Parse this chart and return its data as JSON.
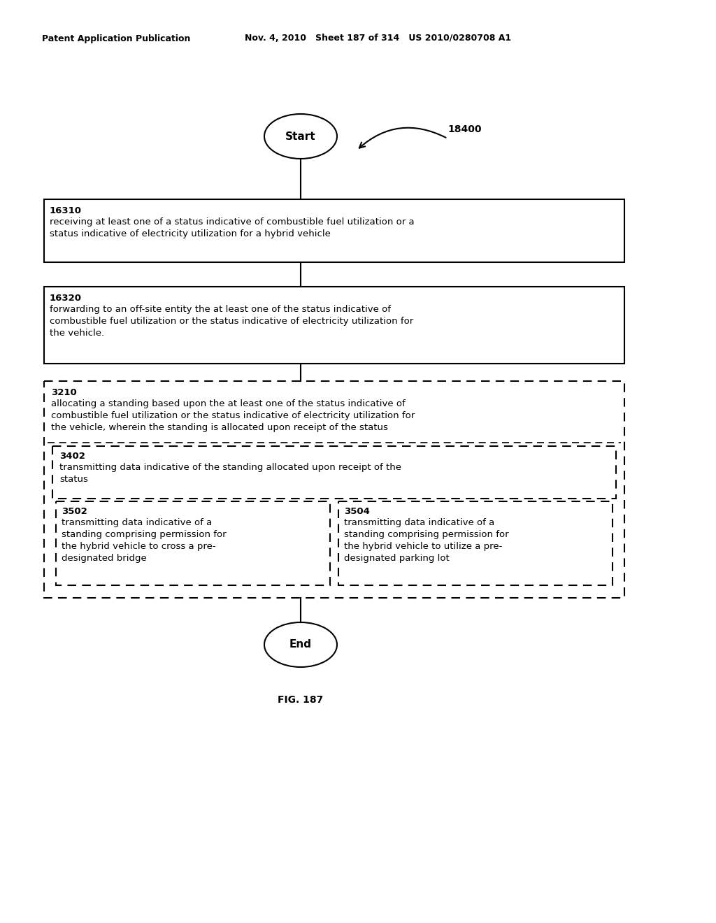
{
  "header_left": "Patent Application Publication",
  "header_mid": "Nov. 4, 2010   Sheet 187 of 314   US 2010/0280708 A1",
  "fig_label": "FIG. 187",
  "diagram_label": "18400",
  "start_label": "Start",
  "end_label": "End",
  "box1_id": "16310",
  "box1_text": "receiving at least one of a status indicative of combustible fuel utilization or a\nstatus indicative of electricity utilization for a hybrid vehicle",
  "box2_id": "16320",
  "box2_text": "forwarding to an off-site entity the at least one of the status indicative of\ncombustible fuel utilization or the status indicative of electricity utilization for\nthe vehicle.",
  "dbox1_id": "3210",
  "dbox1_text": "allocating a standing based upon the at least one of the status indicative of\ncombustible fuel utilization or the status indicative of electricity utilization for\nthe vehicle, wherein the standing is allocated upon receipt of the status",
  "dbox2_id": "3402",
  "dbox2_text": "transmitting data indicative of the standing allocated upon receipt of the\nstatus",
  "dbox3_id": "3502",
  "dbox3_text": "transmitting data indicative of a\nstanding comprising permission for\nthe hybrid vehicle to cross a pre-\ndesignated bridge",
  "dbox4_id": "3504",
  "dbox4_text": "transmitting data indicative of a\nstanding comprising permission for\nthe hybrid vehicle to utilize a pre-\ndesignated parking lot",
  "bg_color": "#ffffff",
  "text_color": "#000000"
}
